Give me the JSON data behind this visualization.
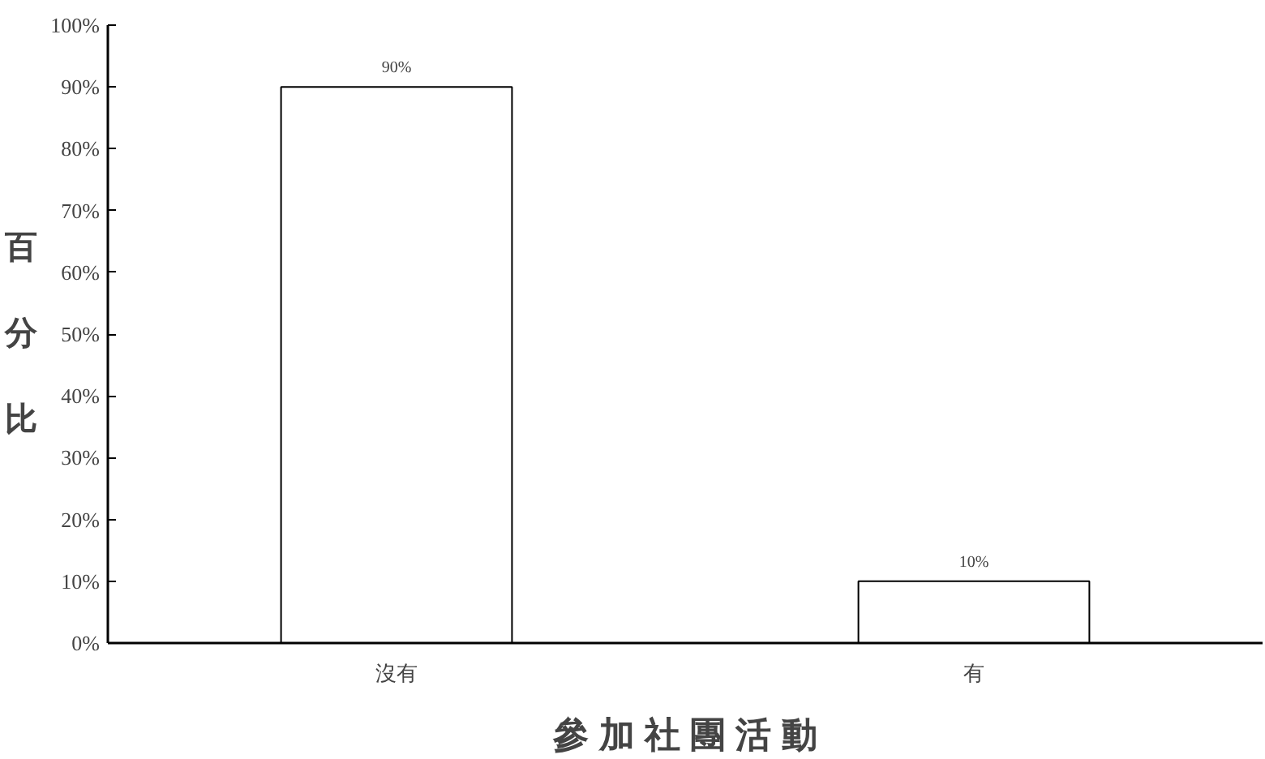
{
  "chart_data": {
    "type": "bar",
    "categories": [
      "沒有",
      "有"
    ],
    "values": [
      90,
      10
    ],
    "value_labels": [
      "90%",
      "10%"
    ],
    "color": "#ffffff",
    "xlabel": "參 加 社 團 活 動",
    "ylabel": "百分比",
    "ylim": [
      0,
      100
    ],
    "yticks": [
      {
        "value": 0,
        "label": "0%"
      },
      {
        "value": 10,
        "label": "10%"
      },
      {
        "value": 20,
        "label": "20%"
      },
      {
        "value": 30,
        "label": "30%"
      },
      {
        "value": 40,
        "label": "40%"
      },
      {
        "value": 50,
        "label": "50%"
      },
      {
        "value": 60,
        "label": "60%"
      },
      {
        "value": 70,
        "label": "70%"
      },
      {
        "value": 80,
        "label": "80%"
      },
      {
        "value": 90,
        "label": "90%"
      },
      {
        "value": 100,
        "label": "100%"
      }
    ],
    "grid": false
  }
}
